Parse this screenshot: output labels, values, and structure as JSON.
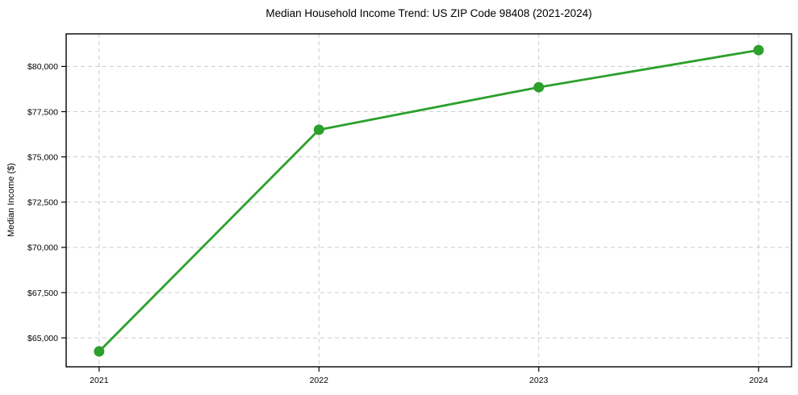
{
  "chart_data": {
    "type": "line",
    "title": "Median Household Income Trend: US ZIP Code 98408 (2021-2024)",
    "xlabel": "",
    "ylabel": "Median Income ($)",
    "x": [
      2021,
      2022,
      2023,
      2024
    ],
    "series": [
      {
        "name": "Median Household Income",
        "values": [
          64250,
          76500,
          78850,
          80900
        ]
      }
    ],
    "xtick_labels": [
      "2021",
      "2022",
      "2023",
      "2024"
    ],
    "ytick_values": [
      65000,
      67500,
      70000,
      72500,
      75000,
      77500,
      80000
    ],
    "ytick_labels": [
      "$65,000",
      "$67,500",
      "$70,000",
      "$72,500",
      "$75,000",
      "$77,500",
      "$80,000"
    ],
    "xlim": [
      2020.85,
      2024.15
    ],
    "ylim": [
      63400,
      81800
    ],
    "grid": true,
    "grid_style": "dashed",
    "legend_position": "none",
    "line_color": "#2ca02c",
    "marker_color": "#2ca02c",
    "marker_shape": "circle",
    "grid_color": "#cccccc",
    "axis_color": "#000000",
    "text_color": "#000000",
    "background_color": "#ffffff"
  }
}
